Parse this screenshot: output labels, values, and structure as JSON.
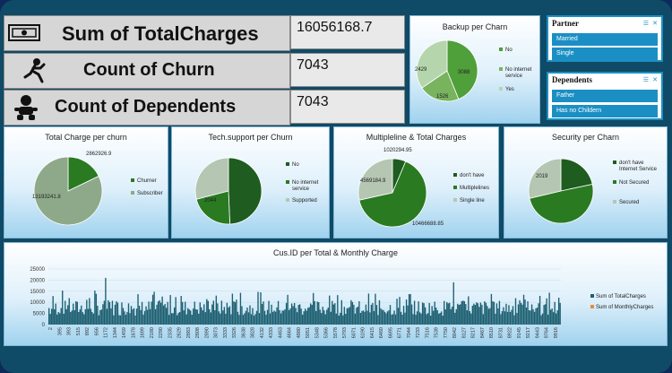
{
  "kpis": [
    {
      "label": "Sum of TotalCharges",
      "value": "16056168.7",
      "icon": "money-icon"
    },
    {
      "label": "Count of Churn",
      "value": "7043",
      "icon": "running-person-icon"
    },
    {
      "label": "Count of Dependents",
      "value": "7043",
      "icon": "baby-icon"
    }
  ],
  "slicers": {
    "partner": {
      "title": "Partner",
      "items": [
        "Married",
        "Single"
      ]
    },
    "dependents": {
      "title": "Dependents",
      "items": [
        "Father",
        "Has no Childern"
      ]
    }
  },
  "colors": {
    "dark_green": "#2a7a22",
    "mid_green": "#4f9f3a",
    "light_green": "#b5d6ad",
    "gray_green": "#8ea98a",
    "dark_forest": "#1e5c20",
    "bar": "#1d5f70",
    "sum_monthly": "#e88a3a"
  },
  "chart_data": [
    {
      "type": "pie",
      "id": "backup",
      "title": "Backup per Charn",
      "slices": [
        {
          "name": "No",
          "value": 3088,
          "color": "#4f9f3a",
          "label": "3088"
        },
        {
          "name": "No internet service",
          "value": 1526,
          "color": "#78b35e",
          "label": "1526"
        },
        {
          "name": "Yes",
          "value": 2429,
          "color": "#b5d6ad",
          "label": "2429"
        }
      ],
      "legend": "right"
    },
    {
      "type": "pie",
      "id": "total-charge",
      "title": "Total Charge per churn",
      "slices": [
        {
          "name": "Churner",
          "value": 2862926.9,
          "color": "#2a7a22",
          "label": "2862926.9"
        },
        {
          "name": "Subscriber",
          "value": 13193241.8,
          "color": "#8ea98a",
          "label": "13193241.8"
        }
      ],
      "legend": "right"
    },
    {
      "type": "pie",
      "id": "tech-support",
      "title": "Tech.support per Churn",
      "slices": [
        {
          "name": "No",
          "value": 3473,
          "color": "#1e5c20",
          "label": ""
        },
        {
          "name": "No internet service",
          "value": 1526,
          "color": "#2a7a22",
          "label": ""
        },
        {
          "name": "Supported",
          "value": 2044,
          "color": "#b5c6b2",
          "label": "2044"
        }
      ],
      "legend": "right"
    },
    {
      "type": "pie",
      "id": "multipleline",
      "title": "Multipleline & Total Charges",
      "slices": [
        {
          "name": "don't have",
          "value": 1020294.95,
          "color": "#1e5c20",
          "label": "1020294.95"
        },
        {
          "name": "Multiplelines",
          "value": 10466688.85,
          "color": "#2a7a22",
          "label": "10466688.85"
        },
        {
          "name": "Single line",
          "value": 4569184.9,
          "color": "#b5c6b2",
          "label": "4569184.9"
        }
      ],
      "legend": "right"
    },
    {
      "type": "pie",
      "id": "security",
      "title": "Security per Charn",
      "slices": [
        {
          "name": "don't have Internet Service",
          "value": 1526,
          "color": "#1e5c20",
          "label": ""
        },
        {
          "name": "Not Secured",
          "value": 3498,
          "color": "#2a7a22",
          "label": ""
        },
        {
          "name": "Secured",
          "value": 2019,
          "color": "#b5c6b2",
          "label": "2019"
        }
      ],
      "legend": "right"
    },
    {
      "type": "bar",
      "id": "cusid",
      "title": "Cus.ID per Total & Monthly Charge",
      "ylim": [
        0,
        25000
      ],
      "yticks": [
        0,
        5000,
        10000,
        15000,
        20000,
        25000
      ],
      "categories": [
        "2",
        "395",
        "393",
        "515",
        "892",
        "656",
        "1172",
        "1344",
        "1459",
        "1678",
        "1699",
        "2180",
        "2290",
        "2335",
        "2629",
        "2883",
        "2808",
        "2890",
        "3073",
        "3333",
        "3326",
        "3638",
        "3828",
        "4132",
        "4333",
        "4463",
        "4664",
        "4880",
        "5051",
        "5348",
        "5366",
        "5578",
        "5793",
        "6071",
        "6190",
        "6415",
        "6460",
        "6695",
        "6771",
        "7044",
        "7233",
        "7516",
        "7539",
        "7750",
        "8042",
        "8127",
        "8217",
        "8467",
        "8510",
        "8731",
        "8922",
        "9145",
        "9217",
        "9443",
        "9764",
        "9916"
      ],
      "series": [
        {
          "name": "Sum of TotalCharges",
          "color": "#1d5f70"
        },
        {
          "name": "Sum of MonthlyCharges",
          "color": "#e88a3a"
        }
      ],
      "legend": "right"
    }
  ]
}
